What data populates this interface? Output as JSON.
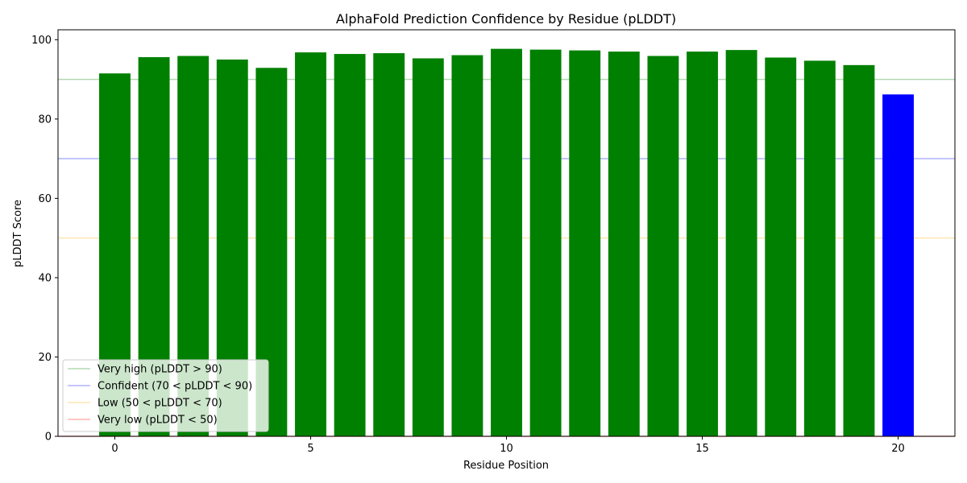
{
  "chart_data": {
    "type": "bar",
    "title": "AlphaFold Prediction Confidence by Residue (pLDDT)",
    "xlabel": "Residue Position",
    "ylabel": "pLDDT Score",
    "xlim": [
      -1.45,
      21.45
    ],
    "ylim": [
      0,
      102.5
    ],
    "x": [
      0,
      1,
      2,
      3,
      4,
      5,
      6,
      7,
      8,
      9,
      10,
      11,
      12,
      13,
      14,
      15,
      16,
      17,
      18,
      19,
      20
    ],
    "values": [
      91.5,
      95.6,
      95.9,
      95.0,
      92.9,
      96.8,
      96.4,
      96.6,
      95.3,
      96.1,
      97.7,
      97.5,
      97.3,
      97.0,
      95.9,
      97.0,
      97.4,
      95.5,
      94.7,
      93.6,
      86.2
    ],
    "bar_colors": [
      "#008000",
      "#008000",
      "#008000",
      "#008000",
      "#008000",
      "#008000",
      "#008000",
      "#008000",
      "#008000",
      "#008000",
      "#008000",
      "#008000",
      "#008000",
      "#008000",
      "#008000",
      "#008000",
      "#008000",
      "#008000",
      "#008000",
      "#008000",
      "#0000ff"
    ],
    "x_ticks": [
      0,
      5,
      10,
      15,
      20
    ],
    "y_ticks": [
      0,
      20,
      40,
      60,
      80,
      100
    ],
    "reference_lines": [
      {
        "label": "Very high (pLDDT > 90)",
        "y": 90,
        "color": "#008000"
      },
      {
        "label": "Confident (70 < pLDDT < 90)",
        "y": 70,
        "color": "#0000ff"
      },
      {
        "label": "Low (50 < pLDDT < 70)",
        "y": 50,
        "color": "#ffa500"
      },
      {
        "label": "Very low (pLDDT < 50)",
        "y": 0,
        "color": "#ff0000"
      }
    ],
    "legend_location": "lower-left",
    "grid": false
  }
}
